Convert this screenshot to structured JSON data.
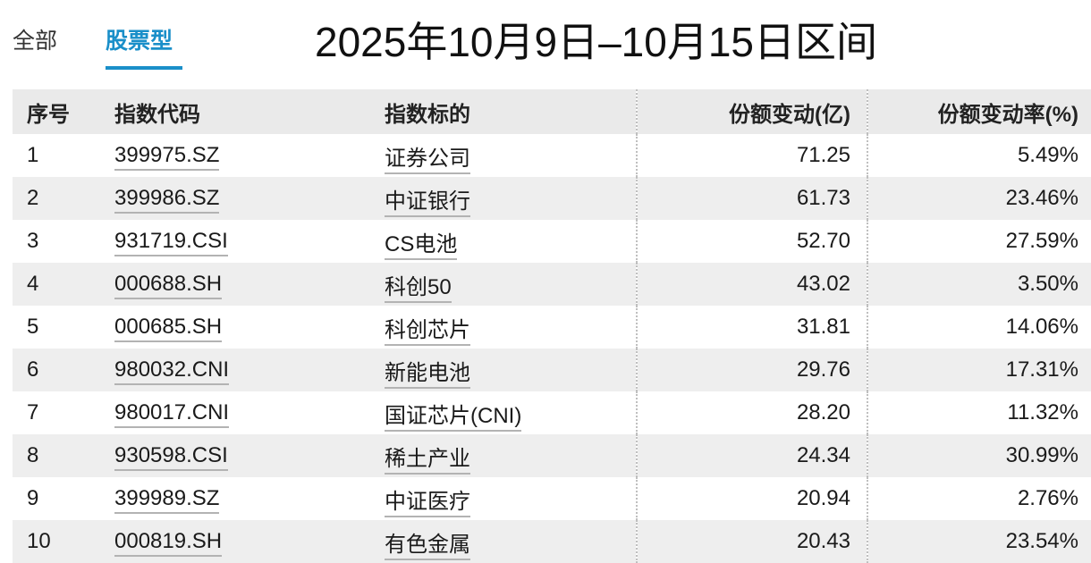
{
  "tabs": [
    {
      "label": "全部",
      "active": false
    },
    {
      "label": "股票型",
      "active": true
    }
  ],
  "title": "2025年10月9日–10月15日区间",
  "accent_color": "#1a8fc9",
  "table": {
    "headers": {
      "rank": "序号",
      "code": "指数代码",
      "target": "指数标的",
      "change": "份额变动(亿)",
      "rate": "份额变动率(%)"
    },
    "rows": [
      {
        "rank": "1",
        "code": "399975.SZ",
        "target": "证券公司",
        "change": "71.25",
        "rate": "5.49%"
      },
      {
        "rank": "2",
        "code": "399986.SZ",
        "target": "中证银行",
        "change": "61.73",
        "rate": "23.46%"
      },
      {
        "rank": "3",
        "code": "931719.CSI",
        "target": "CS电池",
        "change": "52.70",
        "rate": "27.59%"
      },
      {
        "rank": "4",
        "code": "000688.SH",
        "target": "科创50",
        "change": "43.02",
        "rate": "3.50%"
      },
      {
        "rank": "5",
        "code": "000685.SH",
        "target": "科创芯片",
        "change": "31.81",
        "rate": "14.06%"
      },
      {
        "rank": "6",
        "code": "980032.CNI",
        "target": "新能电池",
        "change": "29.76",
        "rate": "17.31%"
      },
      {
        "rank": "7",
        "code": "980017.CNI",
        "target": "国证芯片(CNI)",
        "change": "28.20",
        "rate": "11.32%"
      },
      {
        "rank": "8",
        "code": "930598.CSI",
        "target": "稀土产业",
        "change": "24.34",
        "rate": "30.99%"
      },
      {
        "rank": "9",
        "code": "399989.SZ",
        "target": "中证医疗",
        "change": "20.94",
        "rate": "2.76%"
      },
      {
        "rank": "10",
        "code": "000819.SH",
        "target": "有色金属",
        "change": "20.43",
        "rate": "23.54%"
      }
    ]
  }
}
